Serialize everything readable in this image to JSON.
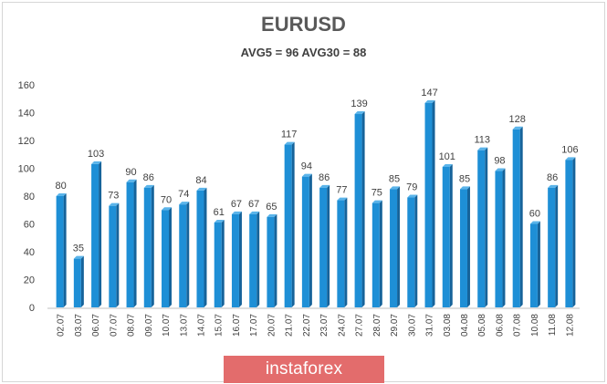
{
  "chart_data": {
    "type": "bar",
    "title": "EURUSD",
    "subtitle": "AVG5 = 96 AVG30 = 88",
    "categories": [
      "02.07",
      "03.07",
      "06.07",
      "07.07",
      "08.07",
      "09.07",
      "10.07",
      "13.07",
      "14.07",
      "15.07",
      "16.07",
      "17.07",
      "20.07",
      "21.07",
      "22.07",
      "23.07",
      "24.07",
      "27.07",
      "28.07",
      "29.07",
      "30.07",
      "31.07",
      "03.08",
      "04.08",
      "05.08",
      "06.08",
      "07.08",
      "10.08",
      "11.08",
      "12.08"
    ],
    "values": [
      80,
      35,
      103,
      73,
      90,
      86,
      70,
      74,
      84,
      61,
      67,
      67,
      65,
      117,
      94,
      86,
      77,
      139,
      75,
      85,
      79,
      147,
      101,
      85,
      113,
      98,
      128,
      60,
      86,
      106
    ],
    "ylim": [
      0,
      160
    ],
    "yticks": [
      0,
      20,
      40,
      60,
      80,
      100,
      120,
      140,
      160
    ],
    "grid": false,
    "legend": "none",
    "colors": {
      "bar_front": "#1e8fd6",
      "bar_side": "#16639a",
      "bar_top": "#5ab4ea",
      "axis_text": "#404040"
    }
  },
  "watermark": {
    "text": "instaforex",
    "color": "#e36c6c"
  }
}
